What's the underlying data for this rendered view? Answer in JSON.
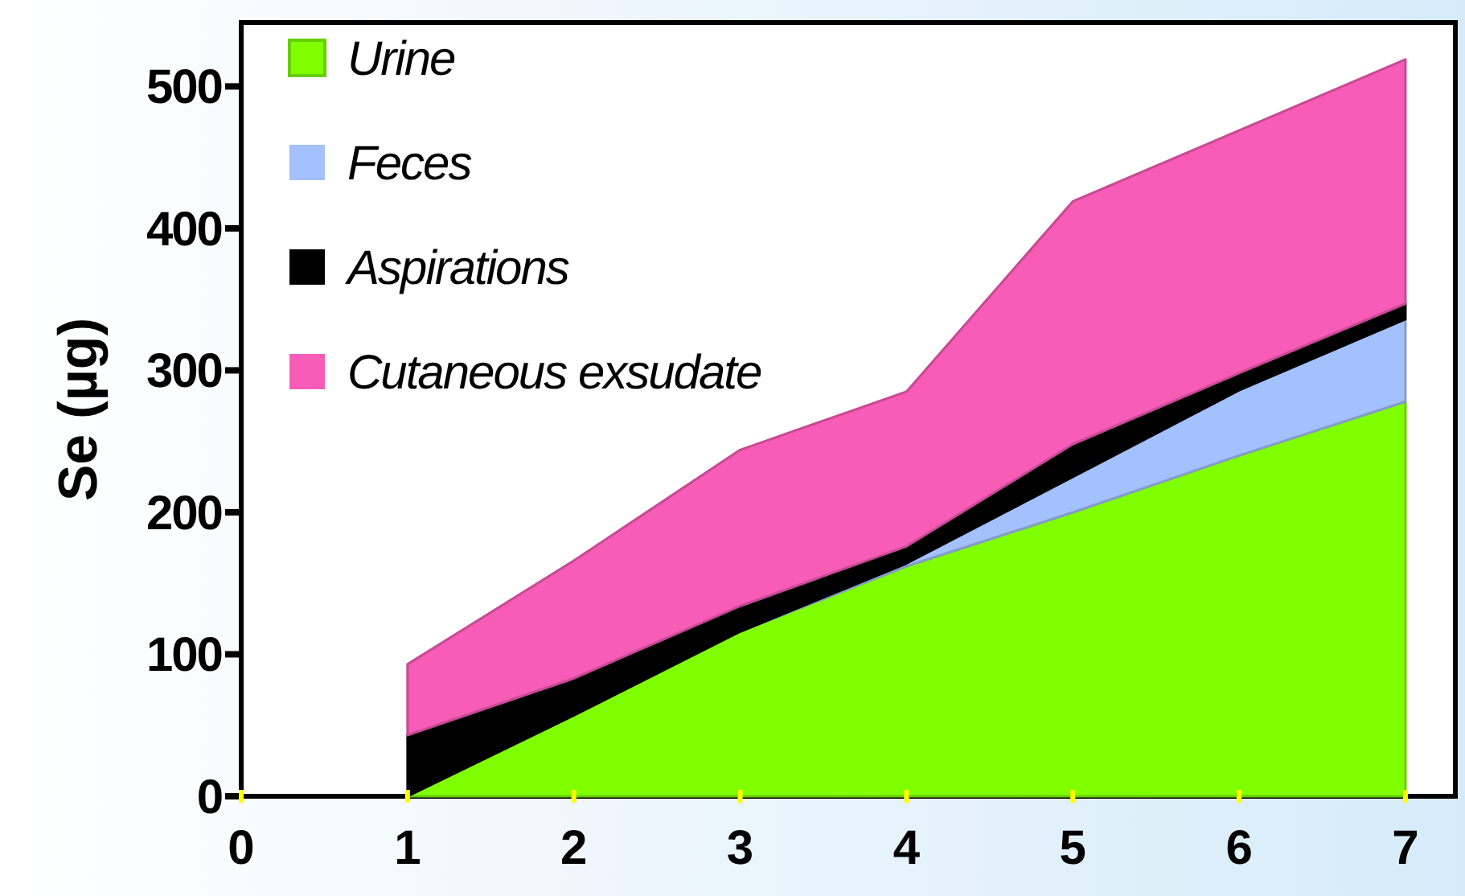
{
  "chart_data": {
    "type": "area",
    "stacked": true,
    "ylabel": "Se (µg)",
    "x": [
      1,
      2,
      3,
      4,
      5,
      6,
      7
    ],
    "series": [
      {
        "name": "Urine",
        "color": "#80ff00",
        "values": [
          0,
          57,
          116,
          162,
          200,
          240,
          278
        ]
      },
      {
        "name": "Feces",
        "color": "#a3c1fc",
        "values": [
          0,
          0,
          0,
          2,
          25,
          46,
          58
        ]
      },
      {
        "name": "Aspirations",
        "color": "#000000",
        "values": [
          43,
          26,
          18,
          12,
          23,
          12,
          11
        ]
      },
      {
        "name": "Cutaneous exsudate",
        "color": "#f75cb7",
        "values": [
          50,
          83,
          110,
          109,
          171,
          171,
          172
        ]
      }
    ],
    "xlim": [
      0,
      7.3
    ],
    "xticks": [
      0,
      1,
      2,
      3,
      4,
      5,
      6,
      7
    ],
    "ylim": [
      0,
      545
    ],
    "yticks": [
      0,
      100,
      200,
      300,
      400,
      500
    ],
    "legend": "top left",
    "grid": false
  }
}
